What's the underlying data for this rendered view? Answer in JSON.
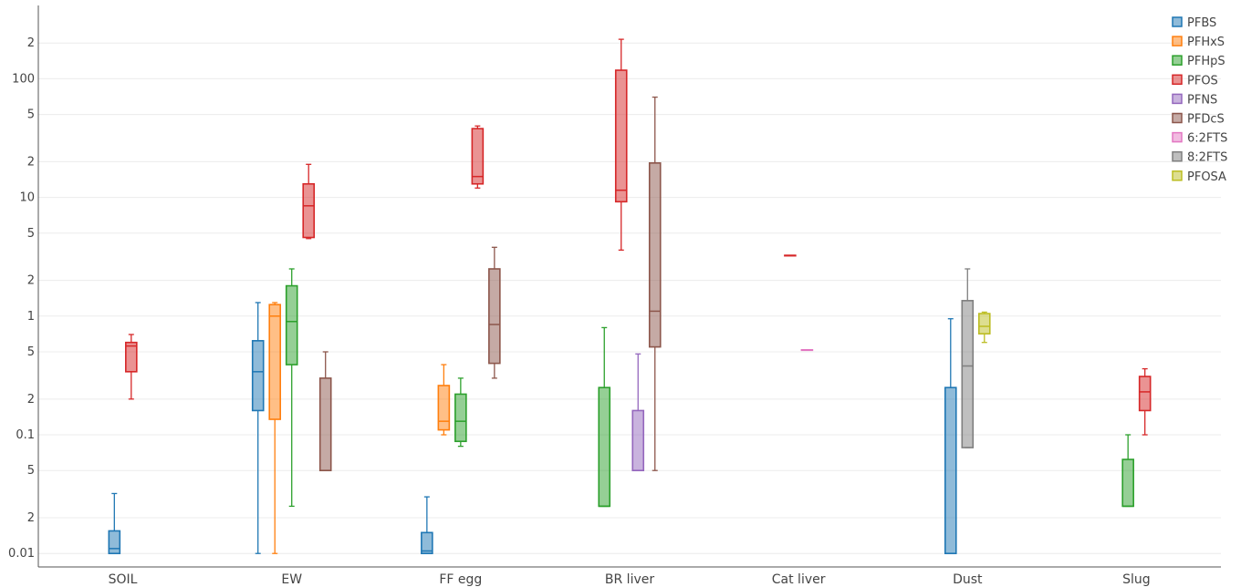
{
  "chart_data": {
    "type": "box",
    "title": "",
    "xlabel": "",
    "ylabel": "",
    "y_scale": "log",
    "ylim": [
      0.0077,
      400
    ],
    "grid": true,
    "legend_position": "top-right",
    "categories": [
      "SOIL",
      "EW",
      "FF egg",
      "BR liver",
      "Cat liver",
      "Dust",
      "Slug"
    ],
    "y_major_ticks": [
      {
        "value": 0.01,
        "label": "0.01"
      },
      {
        "value": 0.1,
        "label": "0.1"
      },
      {
        "value": 1,
        "label": "1"
      },
      {
        "value": 10,
        "label": "10"
      },
      {
        "value": 100,
        "label": "100"
      }
    ],
    "y_minor_ticks": [
      {
        "value": 0.02,
        "label": "2"
      },
      {
        "value": 0.05,
        "label": "5"
      },
      {
        "value": 0.2,
        "label": "2"
      },
      {
        "value": 0.5,
        "label": "5"
      },
      {
        "value": 2,
        "label": "2"
      },
      {
        "value": 5,
        "label": "5"
      },
      {
        "value": 20,
        "label": "2"
      },
      {
        "value": 50,
        "label": "5"
      },
      {
        "value": 200,
        "label": "2"
      }
    ],
    "series": [
      {
        "name": "PFBS",
        "color": "#1f77b4",
        "boxes": [
          {
            "category": "SOIL",
            "min": 0.01,
            "q1": 0.01,
            "median": 0.011,
            "q3": 0.0155,
            "max": 0.032
          },
          {
            "category": "EW",
            "min": 0.01,
            "q1": 0.16,
            "median": 0.34,
            "q3": 0.62,
            "max": 1.3
          },
          {
            "category": "FF egg",
            "min": 0.01,
            "q1": 0.01,
            "median": 0.0105,
            "q3": 0.015,
            "max": 0.03
          },
          {
            "category": "Dust",
            "min": 0.01,
            "q1": 0.01,
            "median": 0.01,
            "q3": 0.25,
            "max": 0.95
          }
        ]
      },
      {
        "name": "PFHxS",
        "color": "#ff7f0e",
        "boxes": [
          {
            "category": "EW",
            "min": 0.01,
            "q1": 0.135,
            "median": 1.0,
            "q3": 1.25,
            "max": 1.3
          },
          {
            "category": "FF egg",
            "min": 0.1,
            "q1": 0.11,
            "median": 0.13,
            "q3": 0.26,
            "max": 0.39
          }
        ]
      },
      {
        "name": "PFHpS",
        "color": "#2ca02c",
        "boxes": [
          {
            "category": "EW",
            "min": 0.025,
            "q1": 0.39,
            "median": 0.9,
            "q3": 1.8,
            "max": 2.5
          },
          {
            "category": "FF egg",
            "min": 0.08,
            "q1": 0.088,
            "median": 0.13,
            "q3": 0.22,
            "max": 0.3
          },
          {
            "category": "BR liver",
            "min": 0.025,
            "q1": 0.025,
            "median": 0.025,
            "q3": 0.25,
            "max": 0.8
          },
          {
            "category": "Slug",
            "min": 0.025,
            "q1": 0.025,
            "median": 0.025,
            "q3": 0.062,
            "max": 0.1
          }
        ]
      },
      {
        "name": "PFOS",
        "color": "#d62728",
        "boxes": [
          {
            "category": "SOIL",
            "min": 0.2,
            "q1": 0.34,
            "median": 0.56,
            "q3": 0.6,
            "max": 0.7
          },
          {
            "category": "EW",
            "min": 4.5,
            "q1": 4.6,
            "median": 8.5,
            "q3": 13,
            "max": 19
          },
          {
            "category": "FF egg",
            "min": 12,
            "q1": 13,
            "median": 15,
            "q3": 38,
            "max": 40
          },
          {
            "category": "BR liver",
            "min": 3.6,
            "q1": 9.2,
            "median": 11.5,
            "q3": 118,
            "max": 215
          },
          {
            "category": "Cat liver",
            "min": 3.25,
            "q1": 3.25,
            "median": 3.25,
            "q3": 3.25,
            "max": 3.25
          },
          {
            "category": "Slug",
            "min": 0.1,
            "q1": 0.16,
            "median": 0.23,
            "q3": 0.31,
            "max": 0.36
          }
        ]
      },
      {
        "name": "PFNS",
        "color": "#9467bd",
        "boxes": [
          {
            "category": "BR liver",
            "min": 0.05,
            "q1": 0.05,
            "median": 0.05,
            "q3": 0.16,
            "max": 0.48
          }
        ]
      },
      {
        "name": "PFDcS",
        "color": "#8c564b",
        "boxes": [
          {
            "category": "EW",
            "min": 0.05,
            "q1": 0.05,
            "median": 0.05,
            "q3": 0.3,
            "max": 0.5
          },
          {
            "category": "FF egg",
            "min": 0.3,
            "q1": 0.4,
            "median": 0.85,
            "q3": 2.5,
            "max": 3.8
          },
          {
            "category": "BR liver",
            "min": 0.05,
            "q1": 0.55,
            "median": 1.1,
            "q3": 19.5,
            "max": 70
          }
        ]
      },
      {
        "name": "6:2FTS",
        "color": "#e377c2",
        "boxes": [
          {
            "category": "Cat liver",
            "min": 0.52,
            "q1": 0.52,
            "median": 0.52,
            "q3": 0.52,
            "max": 0.52
          }
        ]
      },
      {
        "name": "8:2FTS",
        "color": "#7f7f7f",
        "boxes": [
          {
            "category": "Dust",
            "min": 0.078,
            "q1": 0.078,
            "median": 0.38,
            "q3": 1.35,
            "max": 2.5
          }
        ]
      },
      {
        "name": "PFOSA",
        "color": "#bcbd22",
        "boxes": [
          {
            "category": "Dust",
            "min": 0.6,
            "q1": 0.71,
            "median": 0.82,
            "q3": 1.05,
            "max": 1.08
          }
        ]
      }
    ]
  }
}
